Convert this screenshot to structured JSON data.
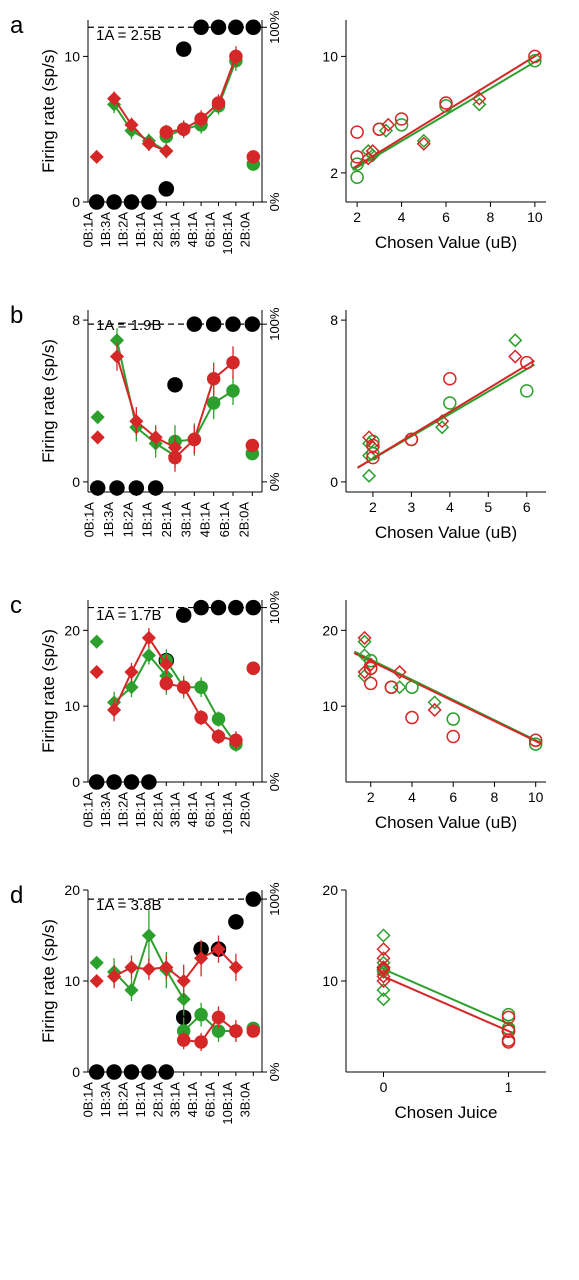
{
  "colors": {
    "red": "#d62728",
    "green": "#2ca02c",
    "black": "#000000",
    "axis": "#000000",
    "background": "#ffffff"
  },
  "marker_size": 6,
  "black_dot_radius": 7,
  "line_width": 2,
  "axis_width": 1,
  "panels": {
    "a": {
      "label": "a",
      "annotation": "1A = 2.5B",
      "left": {
        "ylabel": "Firing rate (sp/s)",
        "ylim": [
          0,
          12.5
        ],
        "yticks": [
          0,
          10
        ],
        "right_ticks": [
          "0%",
          "100%"
        ],
        "dash_y": 12,
        "x_categories": [
          "0B:1A",
          "1B:3A",
          "1B:2A",
          "1B:1A",
          "2B:1A",
          "3B:1A",
          "4B:1A",
          "6B:1A",
          "10B:1A",
          "2B:0A"
        ],
        "black_pts": [
          [
            0,
            0
          ],
          [
            1,
            0
          ],
          [
            2,
            0
          ],
          [
            3,
            0
          ],
          [
            4,
            0.9
          ],
          [
            5,
            10.5
          ],
          [
            6,
            12
          ],
          [
            7,
            12
          ],
          [
            8,
            12
          ],
          [
            9,
            12
          ]
        ],
        "forced_left_red": [
          0,
          3.1
        ],
        "forced_right_red": [
          9,
          3.1
        ],
        "forced_right_green": [
          9,
          2.6
        ],
        "red_diam": [
          [
            1,
            7.1
          ],
          [
            2,
            5.3
          ],
          [
            3,
            4.0
          ],
          [
            4,
            3.5
          ]
        ],
        "green_diam": [
          [
            1,
            6.7
          ],
          [
            2,
            4.9
          ],
          [
            3,
            4.2
          ],
          [
            4,
            3.5
          ]
        ],
        "red_circ": [
          [
            4,
            4.8
          ],
          [
            5,
            5.0
          ],
          [
            6,
            5.7
          ],
          [
            7,
            6.8
          ],
          [
            8,
            10.0
          ]
        ],
        "green_circ": [
          [
            4,
            4.5
          ],
          [
            5,
            5.0
          ],
          [
            6,
            5.3
          ],
          [
            7,
            6.6
          ],
          [
            8,
            9.7
          ]
        ],
        "red_err": [
          0.5,
          0.5,
          0.5,
          0.4,
          0.5,
          0.6,
          0.6,
          0.6,
          0.7
        ],
        "green_err": [
          0.6,
          0.6,
          0.5,
          0.5,
          0.6,
          0.6,
          0.6,
          0.6,
          0.7
        ]
      },
      "right": {
        "xlabel": "Chosen Value (uB)",
        "ylabel": "",
        "xlim": [
          1.5,
          10.5
        ],
        "xticks": [
          2,
          4,
          6,
          8,
          10
        ],
        "ylim": [
          0,
          12.5
        ],
        "yticks": [
          2,
          10
        ],
        "red_diam": [
          [
            2.5,
            3.0
          ],
          [
            2.7,
            3.5
          ],
          [
            5.0,
            4.0
          ],
          [
            7.5,
            7.1
          ],
          [
            3.4,
            5.3
          ]
        ],
        "green_diam": [
          [
            2.5,
            3.5
          ],
          [
            5.0,
            4.2
          ],
          [
            7.5,
            6.7
          ],
          [
            2.7,
            3.2
          ],
          [
            3.3,
            4.9
          ]
        ],
        "red_circ": [
          [
            2.0,
            3.1
          ],
          [
            3.0,
            5.0
          ],
          [
            4.0,
            5.7
          ],
          [
            6.0,
            6.8
          ],
          [
            10.0,
            10.0
          ],
          [
            2.0,
            4.8
          ]
        ],
        "green_circ": [
          [
            2.0,
            2.6
          ],
          [
            3.0,
            5.0
          ],
          [
            4.0,
            5.3
          ],
          [
            6.0,
            6.6
          ],
          [
            10.0,
            9.7
          ],
          [
            2.0,
            1.7
          ]
        ],
        "red_line": [
          [
            1.8,
            2.3
          ],
          [
            10.2,
            10.2
          ]
        ],
        "green_line": [
          [
            1.8,
            2.2
          ],
          [
            10.2,
            9.8
          ]
        ]
      }
    },
    "b": {
      "label": "b",
      "annotation": "1A = 1.9B",
      "left": {
        "ylabel": "Firing rate (sp/s)",
        "ylim": [
          -0.5,
          8.5
        ],
        "yticks": [
          0,
          8
        ],
        "right_ticks": [
          "0%",
          "100%"
        ],
        "dash_y": 7.8,
        "x_categories": [
          "0B:1A",
          "1B:3A",
          "1B:2A",
          "1B:1A",
          "2B:1A",
          "3B:1A",
          "4B:1A",
          "6B:1A",
          "2B:0A"
        ],
        "black_pts": [
          [
            0,
            -0.3
          ],
          [
            1,
            -0.3
          ],
          [
            2,
            -0.3
          ],
          [
            3,
            -0.3
          ],
          [
            4,
            4.8
          ],
          [
            5,
            7.8
          ],
          [
            6,
            7.8
          ],
          [
            7,
            7.8
          ],
          [
            8,
            7.8
          ]
        ],
        "forced_left_red": [
          0,
          2.2
        ],
        "forced_left_green": [
          0,
          3.2
        ],
        "forced_right_red": [
          8,
          1.8
        ],
        "forced_right_green": [
          8,
          1.4
        ],
        "red_diam": [
          [
            1,
            6.2
          ],
          [
            2,
            3.0
          ],
          [
            3,
            2.2
          ],
          [
            4,
            1.7
          ]
        ],
        "green_diam": [
          [
            1,
            7.0
          ],
          [
            2,
            2.7
          ],
          [
            3,
            1.9
          ],
          [
            4,
            1.3
          ]
        ],
        "red_circ": [
          [
            4,
            1.2
          ],
          [
            5,
            2.1
          ],
          [
            6,
            5.1
          ],
          [
            7,
            5.9
          ]
        ],
        "green_circ": [
          [
            4,
            2.0
          ],
          [
            5,
            2.1
          ],
          [
            6,
            3.9
          ],
          [
            7,
            4.5
          ]
        ],
        "red_err": [
          0.7,
          0.7,
          0.6,
          0.6,
          0.7,
          0.7,
          0.8,
          0.8
        ],
        "green_err": [
          0.6,
          0.7,
          0.7,
          0.6,
          0.8,
          0.8,
          0.8,
          0.7
        ]
      },
      "right": {
        "xlabel": "Chosen Value (uB)",
        "ylabel": "",
        "xlim": [
          1.3,
          6.5
        ],
        "xticks": [
          2,
          3,
          4,
          5,
          6
        ],
        "ylim": [
          -0.5,
          8.5
        ],
        "yticks": [
          0,
          8
        ],
        "red_diam": [
          [
            1.9,
            2.2
          ],
          [
            3.8,
            3.0
          ],
          [
            5.7,
            6.2
          ],
          [
            2.0,
            1.7
          ]
        ],
        "green_diam": [
          [
            1.9,
            1.3
          ],
          [
            1.9,
            1.9
          ],
          [
            3.8,
            2.7
          ],
          [
            5.7,
            7.0
          ],
          [
            1.9,
            0.3
          ]
        ],
        "red_circ": [
          [
            2.0,
            1.8
          ],
          [
            2.0,
            1.2
          ],
          [
            3.0,
            2.1
          ],
          [
            4.0,
            5.1
          ],
          [
            6.0,
            5.9
          ]
        ],
        "green_circ": [
          [
            2.0,
            1.4
          ],
          [
            2.0,
            2.0
          ],
          [
            3.0,
            2.1
          ],
          [
            4.0,
            3.9
          ],
          [
            6.0,
            4.5
          ]
        ],
        "red_line": [
          [
            1.6,
            0.7
          ],
          [
            6.2,
            6.0
          ]
        ],
        "green_line": [
          [
            1.6,
            0.7
          ],
          [
            6.2,
            5.8
          ]
        ]
      }
    },
    "c": {
      "label": "c",
      "annotation": "1A = 1.7B",
      "left": {
        "ylabel": "Firing rate (sp/s)",
        "ylim": [
          0,
          24
        ],
        "yticks": [
          0,
          10,
          20
        ],
        "right_ticks": [
          "0%",
          "100%"
        ],
        "dash_y": 23,
        "x_categories": [
          "0B:1A",
          "1B:3A",
          "1B:2A",
          "1B:1A",
          "2B:1A",
          "3B:1A",
          "4B:1A",
          "6B:1A",
          "10B:1A",
          "2B:0A"
        ],
        "black_pts": [
          [
            0,
            0
          ],
          [
            1,
            0
          ],
          [
            2,
            0
          ],
          [
            3,
            0
          ],
          [
            4,
            16
          ],
          [
            5,
            22
          ],
          [
            6,
            23
          ],
          [
            7,
            23
          ],
          [
            8,
            23
          ],
          [
            9,
            23
          ]
        ],
        "forced_left_red": [
          0,
          14.5
        ],
        "forced_left_green": [
          0,
          18.5
        ],
        "forced_right_red": [
          9,
          15.0
        ],
        "forced_right_green": [
          9,
          15.0
        ],
        "red_diam": [
          [
            1,
            9.5
          ],
          [
            2,
            14.5
          ],
          [
            3,
            19.0
          ],
          [
            4,
            15.5
          ]
        ],
        "green_diam": [
          [
            1,
            10.5
          ],
          [
            2,
            12.5
          ],
          [
            3,
            16.7
          ],
          [
            4,
            14.0
          ]
        ],
        "red_circ": [
          [
            4,
            13.0
          ],
          [
            5,
            12.5
          ],
          [
            6,
            8.5
          ],
          [
            7,
            6.0
          ],
          [
            8,
            5.5
          ]
        ],
        "green_circ": [
          [
            4,
            16.0
          ],
          [
            5,
            12.5
          ],
          [
            6,
            12.5
          ],
          [
            7,
            8.3
          ],
          [
            8,
            5.0
          ]
        ],
        "red_err": [
          1.5,
          1.2,
          1.3,
          1.3,
          1.0,
          1.2,
          1.0,
          1.0,
          1.2
        ],
        "green_err": [
          1.4,
          1.3,
          1.2,
          2.5,
          1.5,
          1.5,
          1.3,
          1.0,
          1.0
        ]
      },
      "right": {
        "xlabel": "Chosen Value (uB)",
        "ylabel": "",
        "xlim": [
          0.8,
          10.5
        ],
        "xticks": [
          2,
          4,
          6,
          8,
          10
        ],
        "ylim": [
          0,
          24
        ],
        "yticks": [
          10,
          20
        ],
        "red_diam": [
          [
            1.7,
            14.5
          ],
          [
            2.0,
            15.5
          ],
          [
            1.7,
            19.0
          ],
          [
            3.4,
            14.5
          ],
          [
            5.1,
            9.5
          ]
        ],
        "green_diam": [
          [
            1.7,
            14.0
          ],
          [
            1.7,
            16.7
          ],
          [
            1.7,
            18.5
          ],
          [
            3.4,
            12.5
          ],
          [
            5.1,
            10.5
          ]
        ],
        "red_circ": [
          [
            2.0,
            13.0
          ],
          [
            2.0,
            15.0
          ],
          [
            3.0,
            12.5
          ],
          [
            4.0,
            8.5
          ],
          [
            6.0,
            6.0
          ],
          [
            10.0,
            5.5
          ]
        ],
        "green_circ": [
          [
            2.0,
            16.0
          ],
          [
            2.0,
            15.0
          ],
          [
            3.0,
            12.5
          ],
          [
            4.0,
            12.5
          ],
          [
            6.0,
            8.3
          ],
          [
            10.0,
            5.0
          ]
        ],
        "red_line": [
          [
            1.2,
            17.0
          ],
          [
            10.3,
            5.0
          ]
        ],
        "green_line": [
          [
            1.2,
            17.2
          ],
          [
            10.3,
            5.1
          ]
        ]
      }
    },
    "d": {
      "label": "d",
      "annotation": "1A = 3.8B",
      "left": {
        "ylabel": "Firing rate (sp/s)",
        "ylim": [
          0,
          20
        ],
        "yticks": [
          0,
          10,
          20
        ],
        "right_ticks": [
          "0%",
          "100%"
        ],
        "dash_y": 19,
        "x_categories": [
          "0B:1A",
          "1B:3A",
          "1B:2A",
          "1B:1A",
          "2B:1A",
          "3B:1A",
          "4B:1A",
          "6B:1A",
          "10B:1A",
          "3B:0A"
        ],
        "black_pts": [
          [
            0,
            0
          ],
          [
            1,
            0
          ],
          [
            2,
            0
          ],
          [
            3,
            0
          ],
          [
            4,
            0
          ],
          [
            5,
            6
          ],
          [
            6,
            13.5
          ],
          [
            7,
            13.5
          ],
          [
            8,
            16.5
          ],
          [
            9,
            19
          ]
        ],
        "forced_left_red": [
          0,
          10.0
        ],
        "forced_left_green": [
          0,
          12.0
        ],
        "forced_right_red": [
          9,
          4.5
        ],
        "forced_right_green": [
          9,
          4.8
        ],
        "red_diam": [
          [
            1,
            10.5
          ],
          [
            2,
            11.5
          ],
          [
            3,
            11.3
          ],
          [
            4,
            11.5
          ],
          [
            5,
            10.0
          ],
          [
            6,
            12.5
          ],
          [
            7,
            13.5
          ],
          [
            8,
            11.5
          ]
        ],
        "green_diam": [
          [
            1,
            11.0
          ],
          [
            2,
            9.0
          ],
          [
            3,
            15.0
          ],
          [
            4,
            11.2
          ],
          [
            5,
            8.0
          ]
        ],
        "red_circ": [
          [
            5,
            3.5
          ],
          [
            6,
            3.3
          ],
          [
            7,
            6.0
          ],
          [
            8,
            4.5
          ]
        ],
        "green_circ": [
          [
            5,
            4.5
          ],
          [
            6,
            6.3
          ],
          [
            7,
            4.5
          ],
          [
            8,
            4.5
          ]
        ],
        "red_err": [
          1.3,
          1.3,
          1.2,
          1.3,
          1.8,
          2.0,
          1.5,
          1.5,
          1.0,
          1.0,
          1.2,
          1.2
        ],
        "green_err": [
          1.5,
          1.2,
          2.8,
          2.0,
          1.8,
          1.5,
          1.3,
          1.2,
          1.0
        ]
      },
      "right": {
        "xlabel": "Chosen Juice",
        "ylabel": "",
        "xlim": [
          -0.3,
          1.3
        ],
        "xticks": [
          0,
          1
        ],
        "ylim": [
          0,
          20
        ],
        "yticks": [
          10,
          20
        ],
        "red_diam": [
          [
            0,
            10.0
          ],
          [
            0,
            10.5
          ],
          [
            0,
            11.3
          ],
          [
            0,
            11.5
          ],
          [
            0,
            11.5
          ],
          [
            0,
            12.5
          ],
          [
            0,
            13.5
          ],
          [
            0,
            11.5
          ]
        ],
        "green_diam": [
          [
            0,
            8.0
          ],
          [
            0,
            9.0
          ],
          [
            0,
            11.0
          ],
          [
            0,
            11.2
          ],
          [
            0,
            12.0
          ],
          [
            0,
            15.0
          ]
        ],
        "red_circ": [
          [
            1,
            3.3
          ],
          [
            1,
            3.5
          ],
          [
            1,
            4.5
          ],
          [
            1,
            4.5
          ],
          [
            1,
            6.0
          ]
        ],
        "green_circ": [
          [
            1,
            4.5
          ],
          [
            1,
            4.5
          ],
          [
            1,
            4.8
          ],
          [
            1,
            6.3
          ]
        ],
        "red_line": [
          [
            -0.05,
            10.8
          ],
          [
            1.05,
            4.2
          ]
        ],
        "green_line": [
          [
            -0.05,
            11.6
          ],
          [
            1.05,
            5.0
          ]
        ]
      }
    }
  }
}
